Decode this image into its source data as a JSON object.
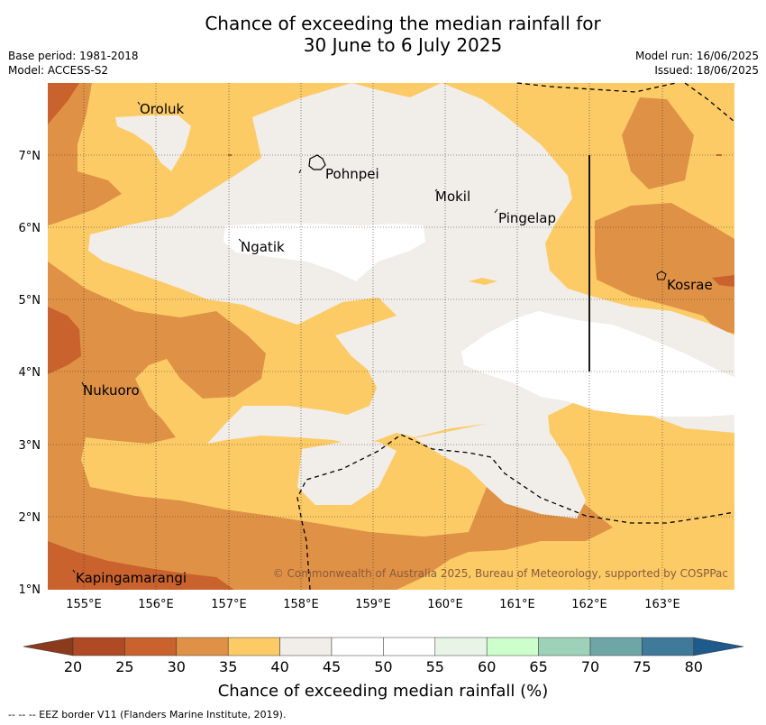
{
  "title": {
    "line1": "Chance of exceeding the median rainfall for",
    "line2": "30 June to 6 July 2025"
  },
  "meta": {
    "base_period": "Base period: 1981-2018",
    "model": "Model: ACCESS-S2",
    "model_run": "Model run: 16/06/2025",
    "issued": "Issued: 18/06/2025"
  },
  "map": {
    "lat_ticks": [
      "7°N",
      "6°N",
      "5°N",
      "4°N",
      "3°N",
      "2°N",
      "1°N"
    ],
    "lon_ticks": [
      "155°E",
      "156°E",
      "157°E",
      "158°E",
      "159°E",
      "160°E",
      "161°E",
      "162°E",
      "163°E"
    ],
    "places": {
      "oroluk": "Oroluk",
      "pohnpei": "Pohnpei",
      "mokil": "Mokil",
      "pingelap": "Pingelap",
      "ngatik": "Ngatik",
      "kosrae": "Kosrae",
      "nukuoro": "Nukuoro",
      "kapingamarangi": "Kapingamarangi"
    },
    "copyright": "© Commonwealth of Australia 2025, Bureau of Meteorology, supported by COSPPac"
  },
  "colorbar": {
    "title": "Chance of exceeding median rainfall (%)",
    "ticks": [
      "20",
      "25",
      "30",
      "35",
      "40",
      "45",
      "50",
      "55",
      "60",
      "65",
      "70",
      "75",
      "80"
    ],
    "colors": [
      "#b04a24",
      "#c9622c",
      "#df9246",
      "#fccb66",
      "#f1ede8",
      "#ffffff",
      "#ffffff",
      "#e8f5e6",
      "#ccffcc",
      "#9ed2b8",
      "#6ea6a8",
      "#3f7a9a"
    ],
    "low_extend_color": "#8b3a1c",
    "high_extend_color": "#1e5a8c"
  },
  "footer": "--  --  -- EEZ border V11 (Flanders Marine Institute, 2019)."
}
